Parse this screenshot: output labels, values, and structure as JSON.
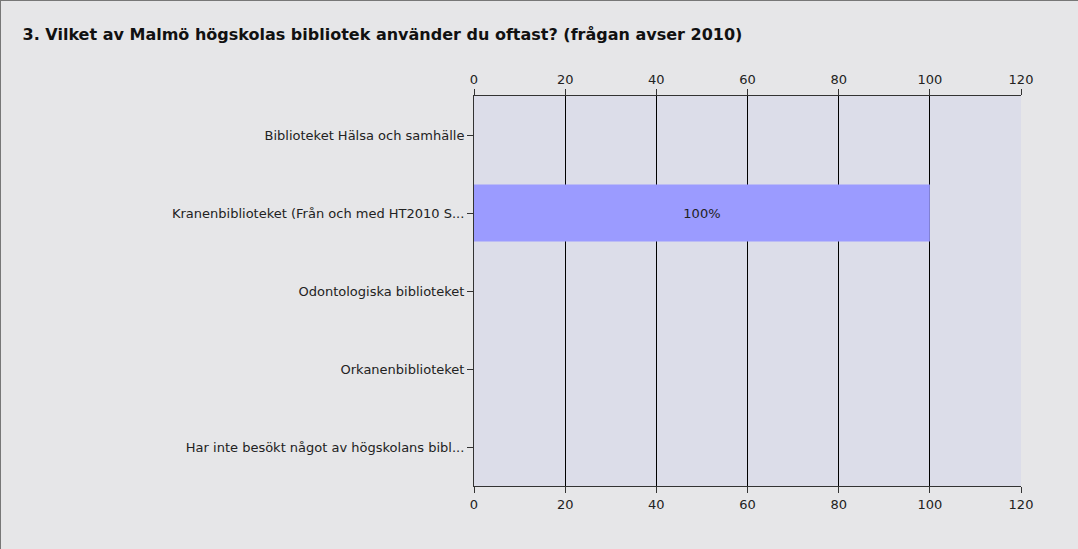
{
  "chart_data": {
    "type": "bar",
    "orientation": "horizontal",
    "title": "3. Vilket av Malmö högskolas bibliotek använder du oftast? (frågan avser 2010)",
    "categories": [
      "Biblioteket Hälsa och samhälle",
      "Kranenbiblioteket (Från och med HT2010 S...",
      "Odontologiska biblioteket",
      "Orkanenbiblioteket",
      "Har inte besökt något av högskolans bibl..."
    ],
    "values": [
      0,
      100,
      0,
      0,
      0
    ],
    "value_labels": [
      null,
      "100%",
      null,
      null,
      null
    ],
    "data_labels": true,
    "color": "#9b9bff",
    "xlim": [
      0,
      120
    ],
    "xticks": [
      0,
      20,
      40,
      60,
      80,
      100,
      120
    ],
    "grid": true
  }
}
